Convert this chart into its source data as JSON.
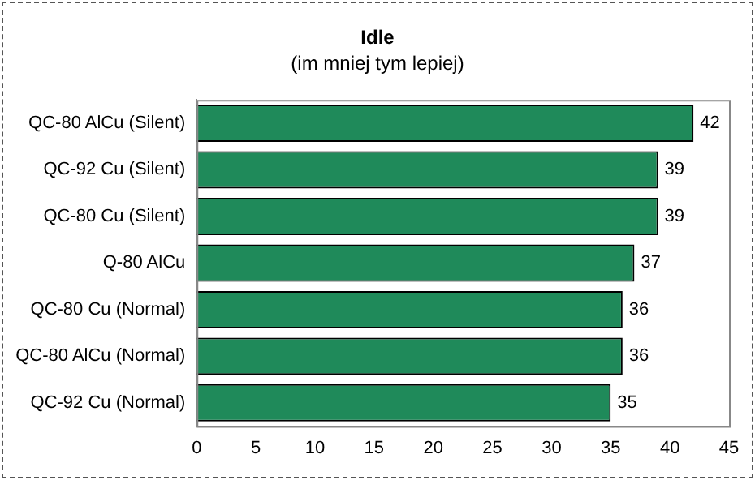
{
  "chart_data": {
    "type": "bar",
    "orientation": "horizontal",
    "title": "Idle",
    "subtitle": "(im mniej tym lepiej)",
    "categories": [
      "QC-80 AlCu (Silent)",
      "QC-92 Cu (Silent)",
      "QC-80 Cu (Silent)",
      "Q-80 AlCu",
      "QC-80 Cu (Normal)",
      "QC-80 AlCu (Normal)",
      "QC-92 Cu (Normal)"
    ],
    "values": [
      42,
      39,
      39,
      37,
      36,
      36,
      35
    ],
    "color": "#1f8a5a",
    "xlim": [
      0,
      45
    ],
    "xticks": [
      0,
      5,
      10,
      15,
      20,
      25,
      30,
      35,
      40,
      45
    ],
    "grid": false,
    "legend": false,
    "data_labels": true
  }
}
